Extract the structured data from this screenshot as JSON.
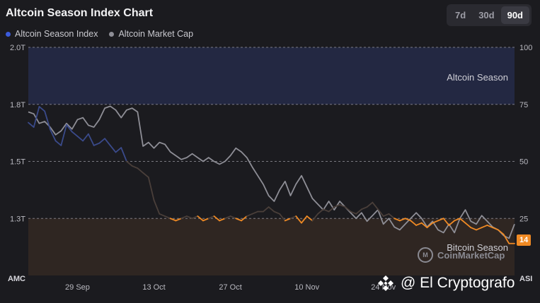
{
  "header": {
    "title": "Altcoin Season Index Chart",
    "ranges": [
      {
        "label": "7d",
        "active": false
      },
      {
        "label": "30d",
        "active": false
      },
      {
        "label": "90d",
        "active": true
      }
    ]
  },
  "legend": {
    "items": [
      {
        "label": "Altcoin Season Index",
        "color": "#3b5bdb"
      },
      {
        "label": "Altcoin Market Cap",
        "color": "#8e8e96"
      }
    ]
  },
  "badge": {
    "current_value": "14"
  },
  "watermark": {
    "text": "@ El Cryptografo"
  },
  "brand": {
    "name": "CoinMarketCap"
  },
  "chart_data": {
    "type": "line",
    "zones": {
      "altcoin_season": {
        "label": "Altcoin Season",
        "from": 75,
        "to": 100,
        "color": "#232842"
      },
      "bitcoin_season": {
        "label": "Bitcoin Season",
        "from": 0,
        "to": 25,
        "color": "#2f2622"
      }
    },
    "left_axis": {
      "label": "AMC",
      "ticks": [
        "2.0T",
        "1.8T",
        "1.5T",
        "1.3T"
      ]
    },
    "right_axis": {
      "label": "ASI",
      "min": 0,
      "max": 100,
      "ticks": [
        100,
        75,
        50,
        25
      ]
    },
    "x_axis": {
      "ticks": [
        "29 Sep",
        "13 Oct",
        "27 Oct",
        "10 Nov",
        "24 Nov"
      ]
    },
    "x": [
      "Sep 20",
      "Sep 21",
      "Sep 22",
      "Sep 23",
      "Sep 24",
      "Sep 25",
      "Sep 26",
      "Sep 27",
      "Sep 28",
      "Sep 29",
      "Sep 30",
      "Oct 1",
      "Oct 2",
      "Oct 3",
      "Oct 4",
      "Oct 5",
      "Oct 6",
      "Oct 7",
      "Oct 8",
      "Oct 9",
      "Oct 10",
      "Oct 11",
      "Oct 12",
      "Oct 13",
      "Oct 14",
      "Oct 15",
      "Oct 16",
      "Oct 17",
      "Oct 18",
      "Oct 19",
      "Oct 20",
      "Oct 21",
      "Oct 22",
      "Oct 23",
      "Oct 24",
      "Oct 25",
      "Oct 26",
      "Oct 27",
      "Oct 28",
      "Oct 29",
      "Oct 30",
      "Oct 31",
      "Nov 1",
      "Nov 2",
      "Nov 3",
      "Nov 4",
      "Nov 5",
      "Nov 6",
      "Nov 7",
      "Nov 8",
      "Nov 9",
      "Nov 10",
      "Nov 11",
      "Nov 12",
      "Nov 13",
      "Nov 14",
      "Nov 15",
      "Nov 16",
      "Nov 17",
      "Nov 18",
      "Nov 19",
      "Nov 20",
      "Nov 21",
      "Nov 22",
      "Nov 23",
      "Nov 24",
      "Nov 25",
      "Nov 26",
      "Nov 27",
      "Nov 28",
      "Nov 29",
      "Nov 30",
      "Dec 1",
      "Dec 2",
      "Dec 3",
      "Dec 4",
      "Dec 5",
      "Dec 6",
      "Dec 7",
      "Dec 8",
      "Dec 9",
      "Dec 10",
      "Dec 11",
      "Dec 12",
      "Dec 13",
      "Dec 14",
      "Dec 15",
      "Dec 16",
      "Dec 17",
      "Dec 18"
    ],
    "series": [
      {
        "name": "Altcoin Season Index",
        "axis": "right",
        "values": [
          67,
          65,
          74,
          72,
          64,
          59,
          57,
          66,
          63,
          61,
          59,
          62,
          57,
          58,
          60,
          57,
          54,
          56,
          50,
          48,
          47,
          45,
          43,
          33,
          27,
          26,
          25,
          24,
          25,
          26,
          25,
          26,
          24,
          25,
          26,
          24,
          25,
          26,
          25,
          24,
          26,
          27,
          28,
          28,
          30,
          28,
          27,
          24,
          25,
          26,
          23,
          26,
          24,
          27,
          29,
          28,
          30,
          31,
          30,
          28,
          27,
          29,
          30,
          32,
          29,
          26,
          27,
          25,
          24,
          25,
          24,
          22,
          23,
          21,
          23,
          24,
          25,
          22,
          24,
          25,
          23,
          21,
          20,
          21,
          22,
          21,
          20,
          18,
          14,
          14
        ]
      },
      {
        "name": "Altcoin Market Cap",
        "axis": "left",
        "values": [
          1.76,
          1.75,
          1.7,
          1.71,
          1.68,
          1.64,
          1.66,
          1.7,
          1.67,
          1.72,
          1.73,
          1.69,
          1.68,
          1.72,
          1.78,
          1.79,
          1.77,
          1.73,
          1.77,
          1.78,
          1.76,
          1.58,
          1.6,
          1.57,
          1.6,
          1.59,
          1.55,
          1.53,
          1.51,
          1.52,
          1.54,
          1.52,
          1.5,
          1.52,
          1.5,
          1.49,
          1.5,
          1.53,
          1.57,
          1.55,
          1.52,
          1.48,
          1.45,
          1.42,
          1.38,
          1.36,
          1.4,
          1.43,
          1.38,
          1.42,
          1.45,
          1.41,
          1.37,
          1.35,
          1.33,
          1.36,
          1.33,
          1.36,
          1.34,
          1.32,
          1.3,
          1.32,
          1.29,
          1.31,
          1.33,
          1.28,
          1.3,
          1.27,
          1.26,
          1.28,
          1.3,
          1.32,
          1.3,
          1.27,
          1.29,
          1.26,
          1.25,
          1.28,
          1.25,
          1.3,
          1.33,
          1.29,
          1.28,
          1.31,
          1.29,
          1.27,
          1.26,
          1.24,
          1.23,
          1.28
        ]
      }
    ]
  }
}
